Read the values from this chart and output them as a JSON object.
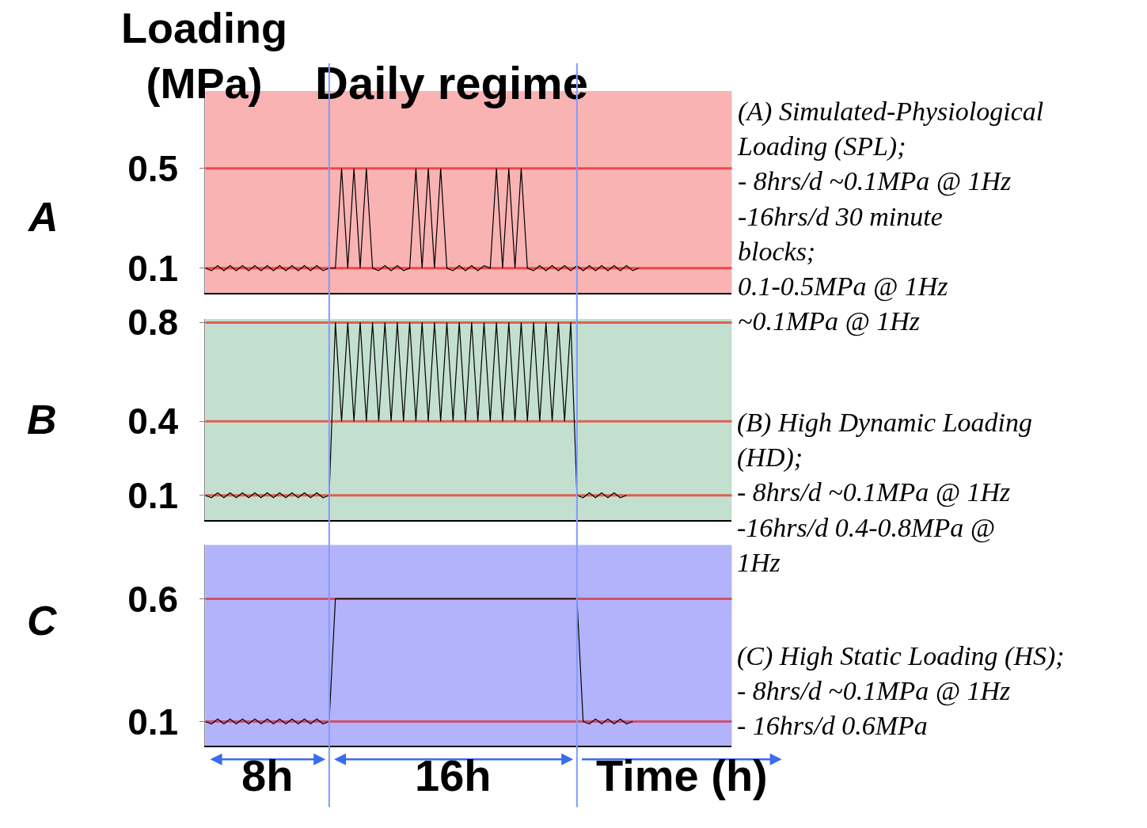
{
  "chart_data": [
    {
      "type": "line",
      "title": "A",
      "subtitle": "Daily regime",
      "ylabel": "Loading\n(MPa)",
      "ylim": [
        0,
        0.81
      ],
      "yticks": [
        0.1,
        0.5
      ],
      "tick_labels": "y",
      "categories": [
        null,
        null,
        null,
        null,
        null,
        null,
        null,
        null,
        null,
        null,
        null,
        null,
        null,
        null,
        null,
        null,
        null,
        null,
        null,
        null,
        null,
        null,
        null,
        null,
        null,
        null,
        null,
        null,
        null,
        null,
        null,
        null,
        null,
        null,
        null,
        null,
        null,
        null,
        null,
        null,
        null,
        null,
        null,
        null,
        null,
        null,
        null,
        null,
        null,
        null,
        null,
        null,
        null,
        null,
        null,
        null,
        null,
        null,
        null,
        null,
        null,
        null,
        null,
        null,
        null,
        null,
        null,
        null,
        null,
        null,
        null,
        null,
        null,
        null,
        null,
        null,
        null,
        null,
        null,
        null,
        null,
        null,
        null,
        null,
        null,
        null
      ],
      "bands": [
        {
          "axis": "y",
          "from": 0,
          "to": 0.81,
          "color": "#f9b3b3"
        }
      ],
      "ref_lines": [
        {
          "axis": "y",
          "value": 0.1,
          "color": "#f04848"
        },
        {
          "axis": "y",
          "value": 0.5,
          "color": "#f04848"
        }
      ],
      "annotations": [
        "(A) Simulated-Physiological\nLoading (SPL);\n- 8hrs/d ~0.1MPa @ 1Hz\n-16hrs/d 30 minute\nblocks;\n0.1-0.5MPa @ 1Hz\n~0.1MPa @ 1Hz"
      ],
      "series": [
        {
          "color": "#000000",
          "values": [
            0.1,
            0.09,
            0.11,
            0.09,
            0.11,
            0.09,
            0.11,
            0.09,
            0.11,
            0.09,
            0.11,
            0.09,
            0.11,
            0.09,
            0.11,
            0.09,
            0.11,
            0.09,
            0.11,
            0.09,
            0.1,
            0.1,
            0.5,
            0.1,
            0.5,
            0.1,
            0.5,
            0.1,
            0.09,
            0.11,
            0.09,
            0.11,
            0.09,
            0.1,
            0.5,
            0.1,
            0.5,
            0.1,
            0.5,
            0.1,
            0.09,
            0.11,
            0.09,
            0.11,
            0.09,
            0.11,
            0.1,
            0.5,
            0.1,
            0.5,
            0.1,
            0.5,
            0.1,
            0.09,
            0.11,
            0.09,
            0.11,
            0.09,
            0.11,
            0.09,
            0.11,
            0.09,
            0.11,
            0.09,
            0.11,
            0.09,
            0.11,
            0.09,
            0.11,
            0.09,
            0.1,
            null,
            null,
            null,
            null,
            null,
            null,
            null,
            null,
            null,
            null,
            null,
            null,
            null,
            null,
            null
          ]
        }
      ]
    },
    {
      "type": "line",
      "title": "B",
      "ylim": [
        0,
        0.815
      ],
      "yticks": [
        0.1,
        0.4,
        0.8
      ],
      "tick_labels": "y",
      "categories": [
        null,
        null,
        null,
        null,
        null,
        null,
        null,
        null,
        null,
        null,
        null,
        null,
        null,
        null,
        null,
        null,
        null,
        null,
        null,
        null,
        null,
        null,
        null,
        null,
        null,
        null,
        null,
        null,
        null,
        null,
        null,
        null,
        null,
        null,
        null,
        null,
        null,
        null,
        null,
        null,
        null,
        null,
        null,
        null,
        null,
        null,
        null,
        null,
        null,
        null,
        null,
        null,
        null,
        null,
        null,
        null,
        null,
        null,
        null,
        null,
        null,
        null,
        null,
        null,
        null,
        null,
        null,
        null,
        null,
        null,
        null,
        null,
        null,
        null,
        null,
        null,
        null,
        null,
        null,
        null,
        null,
        null,
        null,
        null,
        null,
        null
      ],
      "bands": [
        {
          "axis": "y",
          "from": 0,
          "to": 0.815,
          "color": "#c3dfd0"
        }
      ],
      "ref_lines": [
        {
          "axis": "y",
          "value": 0.1,
          "color": "#e06050"
        },
        {
          "axis": "y",
          "value": 0.4,
          "color": "#e06050"
        },
        {
          "axis": "y",
          "value": 0.8,
          "color": "#e06050"
        }
      ],
      "annotations": [
        "(B) High Dynamic Loading\n(HD);\n- 8hrs/d ~0.1MPa @ 1Hz\n-16hrs/d 0.4-0.8MPa @\n1Hz"
      ],
      "series": [
        {
          "color": "#000000",
          "values": [
            0.1,
            0.09,
            0.11,
            0.09,
            0.11,
            0.09,
            0.11,
            0.09,
            0.11,
            0.09,
            0.11,
            0.09,
            0.11,
            0.09,
            0.11,
            0.09,
            0.11,
            0.09,
            0.11,
            0.09,
            0.1,
            0.8,
            0.4,
            0.8,
            0.4,
            0.8,
            0.4,
            0.8,
            0.4,
            0.8,
            0.4,
            0.8,
            0.4,
            0.8,
            0.4,
            0.8,
            0.4,
            0.8,
            0.4,
            0.8,
            0.4,
            0.8,
            0.4,
            0.8,
            0.4,
            0.8,
            0.4,
            0.8,
            0.4,
            0.8,
            0.4,
            0.8,
            0.4,
            0.8,
            0.4,
            0.8,
            0.4,
            0.8,
            0.4,
            0.8,
            0.1,
            0.09,
            0.11,
            0.09,
            0.11,
            0.09,
            0.11,
            0.09,
            0.1,
            null,
            null,
            null,
            null,
            null,
            null,
            null,
            null,
            null,
            null,
            null,
            null,
            null,
            null,
            null,
            null,
            null
          ]
        }
      ]
    },
    {
      "type": "line",
      "title": "C",
      "xlabel": "Time (h)",
      "ylim": [
        0,
        0.82
      ],
      "yticks": [
        0.1,
        0.6
      ],
      "tick_labels": "y",
      "categories": [
        null,
        null,
        null,
        null,
        null,
        null,
        null,
        null,
        null,
        null,
        null,
        null,
        null,
        null,
        null,
        null,
        null,
        null,
        null,
        null,
        null,
        null,
        null,
        null,
        null,
        null,
        null,
        null,
        null,
        null,
        null,
        null,
        null,
        null,
        null,
        null,
        null,
        null,
        null,
        null,
        null,
        null,
        null,
        null,
        null,
        null,
        null,
        null,
        null,
        null,
        null,
        null,
        null,
        null,
        null,
        null,
        null,
        null,
        null,
        null,
        null,
        null,
        null,
        null,
        null,
        null,
        null,
        null,
        null,
        null,
        null,
        null,
        null,
        null,
        null,
        null,
        null,
        null,
        null,
        null,
        null,
        null,
        null,
        null,
        null,
        null
      ],
      "bands": [
        {
          "axis": "y",
          "from": 0,
          "to": 0.82,
          "color": "#b3b3fb"
        }
      ],
      "ref_lines": [
        {
          "axis": "y",
          "value": 0.1,
          "color": "#d05070"
        },
        {
          "axis": "y",
          "value": 0.6,
          "color": "#d05070"
        }
      ],
      "annotations": [
        "(C) High Static Loading (HS);\n- 8hrs/d ~0.1MPa @ 1Hz\n- 16hrs/d 0.6MPa",
        "8h",
        "16h"
      ],
      "series": [
        {
          "color": "#000000",
          "values": [
            0.1,
            0.09,
            0.11,
            0.09,
            0.11,
            0.09,
            0.11,
            0.09,
            0.11,
            0.09,
            0.11,
            0.09,
            0.11,
            0.09,
            0.11,
            0.09,
            0.11,
            0.09,
            0.11,
            0.09,
            0.1,
            0.6,
            0.6,
            0.6,
            0.6,
            0.6,
            0.6,
            0.6,
            0.6,
            0.6,
            0.6,
            0.6,
            0.6,
            0.6,
            0.6,
            0.6,
            0.6,
            0.6,
            0.6,
            0.6,
            0.6,
            0.6,
            0.6,
            0.6,
            0.6,
            0.6,
            0.6,
            0.6,
            0.6,
            0.6,
            0.6,
            0.6,
            0.6,
            0.6,
            0.6,
            0.6,
            0.6,
            0.6,
            0.6,
            0.6,
            0.6,
            0.1,
            0.09,
            0.11,
            0.09,
            0.11,
            0.09,
            0.11,
            0.09,
            0.1,
            null,
            null,
            null,
            null,
            null,
            null,
            null,
            null,
            null,
            null,
            null,
            null,
            null,
            null,
            null,
            null
          ]
        }
      ]
    }
  ]
}
